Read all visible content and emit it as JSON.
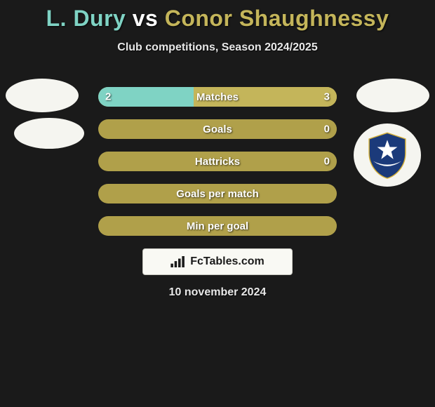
{
  "title": {
    "player1": "L. Dury",
    "vs": "vs",
    "player2": "Conor Shaughnessy"
  },
  "subtitle": "Club competitions, Season 2024/2025",
  "colors": {
    "player1": "#7fd3c4",
    "player2": "#c4b55a",
    "bar_bg": "#b0a04a",
    "page_bg": "#1a1a1a",
    "crest_blue": "#1b3a7a",
    "crest_gold": "#d4af37"
  },
  "bars": [
    {
      "label": "Matches",
      "left": "2",
      "right": "3",
      "segments": [
        {
          "color": "#7fd3c4",
          "left_pct": 0,
          "width_pct": 40
        },
        {
          "color": "#c4b55a",
          "left_pct": 40,
          "width_pct": 60
        }
      ]
    },
    {
      "label": "Goals",
      "left": "",
      "right": "0",
      "segments": []
    },
    {
      "label": "Hattricks",
      "left": "",
      "right": "0",
      "segments": []
    },
    {
      "label": "Goals per match",
      "left": "",
      "right": "",
      "segments": []
    },
    {
      "label": "Min per goal",
      "left": "",
      "right": "",
      "segments": []
    }
  ],
  "watermark": "FcTables.com",
  "date": "10 november 2024"
}
